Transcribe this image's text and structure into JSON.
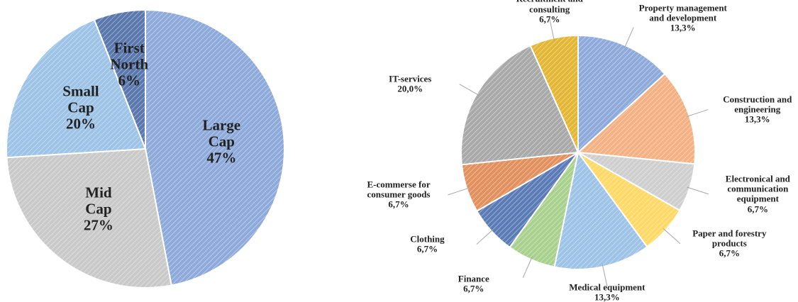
{
  "chart_data": [
    {
      "type": "pie",
      "categories": [
        "Large Cap",
        "Mid Cap",
        "Small Cap",
        "First North"
      ],
      "values": [
        47,
        27,
        20,
        6
      ],
      "value_labels": [
        "47%",
        "27%",
        "20%",
        "6%"
      ],
      "colors": [
        "#8eaadb",
        "#c9c9c9",
        "#9dc3e6",
        "#5a78ad"
      ]
    },
    {
      "type": "pie",
      "categories": [
        "Property management and development",
        "Construction and engineering",
        "Electronical and communication equipment",
        "Paper and forestry products",
        "Medical equipment",
        "Finance",
        "Clothing",
        "E-commerse for consumer goods",
        "IT-services",
        "Recruitment and consulting"
      ],
      "values": [
        13.3,
        13.3,
        6.7,
        6.7,
        13.3,
        6.7,
        6.7,
        6.7,
        20.0,
        6.7
      ],
      "value_labels": [
        "13,3%",
        "13,3%",
        "6,7%",
        "6,7%",
        "13,3%",
        "6,7%",
        "6,7%",
        "6,7%",
        "20,0%",
        "6,7%"
      ],
      "colors": [
        "#8eaadb",
        "#f4b183",
        "#cfcfcf",
        "#ffd966",
        "#9dc3e6",
        "#a9d18e",
        "#5b7bb7",
        "#e2905e",
        "#a9a9a9",
        "#e3b735"
      ]
    }
  ]
}
